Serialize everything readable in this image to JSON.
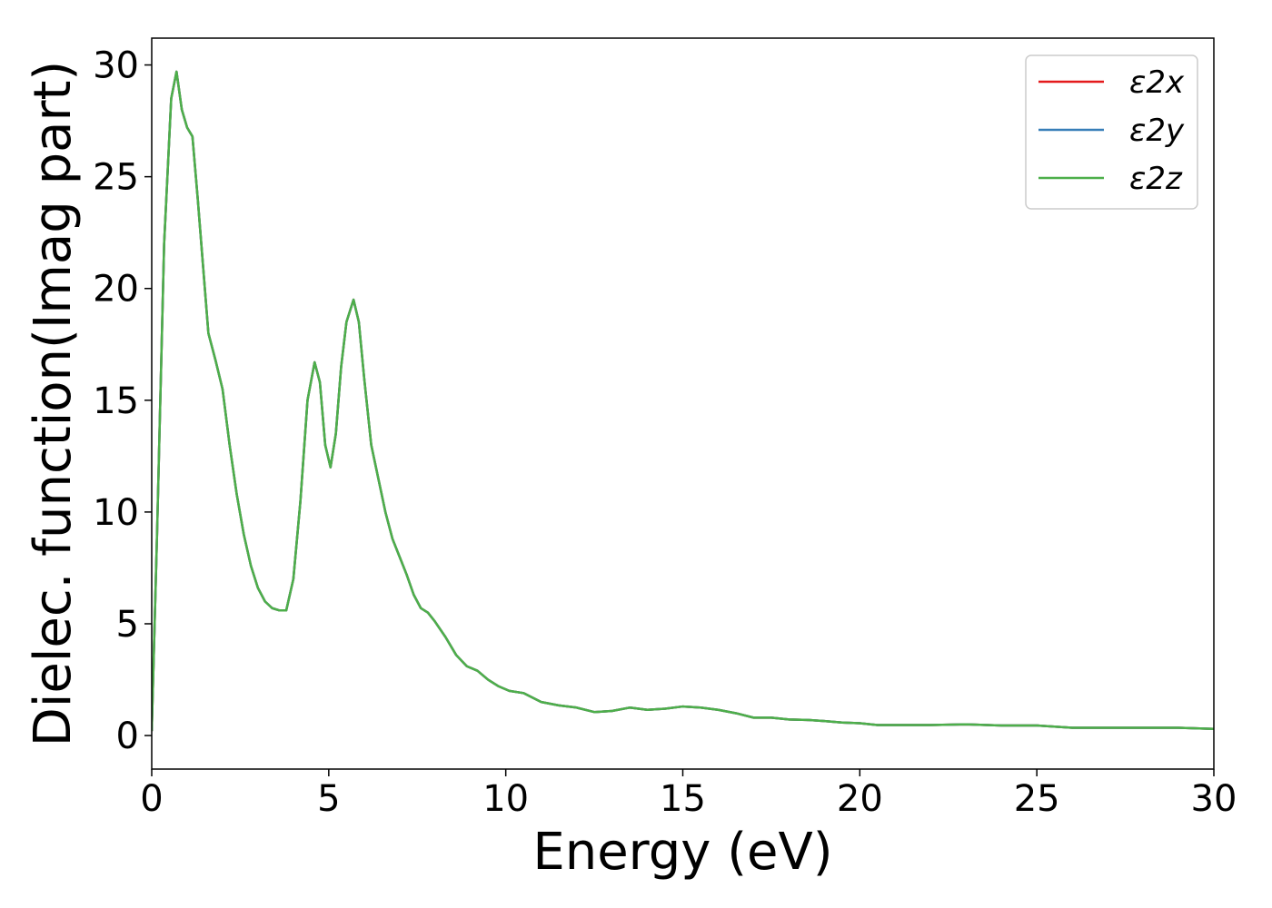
{
  "chart_data": {
    "type": "line",
    "xlabel": "Energy (eV)",
    "ylabel": "Dielec. function(Imag part)",
    "xlim": [
      0,
      30
    ],
    "ylim": [
      -1.5,
      31.2
    ],
    "xticks": [
      0,
      5,
      10,
      15,
      20,
      25,
      30
    ],
    "yticks": [
      0,
      5,
      10,
      15,
      20,
      25,
      30
    ],
    "grid": false,
    "legend_position": "top-right",
    "series": [
      {
        "name": "ε2x",
        "color": "#e41a1c",
        "x": [
          0.0,
          0.15,
          0.35,
          0.55,
          0.7,
          0.85,
          1.0,
          1.15,
          1.3,
          1.45,
          1.6,
          1.8,
          2.0,
          2.2,
          2.4,
          2.6,
          2.8,
          3.0,
          3.2,
          3.4,
          3.6,
          3.8,
          4.0,
          4.2,
          4.4,
          4.6,
          4.75,
          4.9,
          5.05,
          5.2,
          5.35,
          5.5,
          5.7,
          5.85,
          6.0,
          6.2,
          6.4,
          6.6,
          6.8,
          7.0,
          7.2,
          7.4,
          7.6,
          7.8,
          8.0,
          8.3,
          8.6,
          8.9,
          9.2,
          9.5,
          9.8,
          10.1,
          10.5,
          11.0,
          11.5,
          12.0,
          12.5,
          13.0,
          13.5,
          14.0,
          14.5,
          15.0,
          15.5,
          16.0,
          16.5,
          17.0,
          17.5,
          18.0,
          18.5,
          19.0,
          19.5,
          20.0,
          20.5,
          21.0,
          22.0,
          23.0,
          24.0,
          25.0,
          26.0,
          27.0,
          28.0,
          29.0,
          30.0
        ],
        "y": [
          0.2,
          9.0,
          22.0,
          28.5,
          29.7,
          28.0,
          27.2,
          26.8,
          24.0,
          21.0,
          18.0,
          16.8,
          15.5,
          13.0,
          10.8,
          9.0,
          7.6,
          6.6,
          6.0,
          5.7,
          5.6,
          5.6,
          7.0,
          10.5,
          15.0,
          16.7,
          15.8,
          13.0,
          12.0,
          13.5,
          16.5,
          18.5,
          19.5,
          18.5,
          16.0,
          13.0,
          11.5,
          10.0,
          8.8,
          8.0,
          7.2,
          6.3,
          5.7,
          5.5,
          5.1,
          4.4,
          3.6,
          3.1,
          2.9,
          2.5,
          2.2,
          2.0,
          1.9,
          1.5,
          1.35,
          1.25,
          1.05,
          1.1,
          1.25,
          1.15,
          1.2,
          1.3,
          1.25,
          1.15,
          1.0,
          0.8,
          0.8,
          0.72,
          0.7,
          0.65,
          0.58,
          0.55,
          0.47,
          0.47,
          0.47,
          0.5,
          0.45,
          0.45,
          0.35,
          0.35,
          0.35,
          0.35,
          0.3
        ]
      },
      {
        "name": "ε2y",
        "color": "#377eb8",
        "x": [
          0.0,
          0.15,
          0.35,
          0.55,
          0.7,
          0.85,
          1.0,
          1.15,
          1.3,
          1.45,
          1.6,
          1.8,
          2.0,
          2.2,
          2.4,
          2.6,
          2.8,
          3.0,
          3.2,
          3.4,
          3.6,
          3.8,
          4.0,
          4.2,
          4.4,
          4.6,
          4.75,
          4.9,
          5.05,
          5.2,
          5.35,
          5.5,
          5.7,
          5.85,
          6.0,
          6.2,
          6.4,
          6.6,
          6.8,
          7.0,
          7.2,
          7.4,
          7.6,
          7.8,
          8.0,
          8.3,
          8.6,
          8.9,
          9.2,
          9.5,
          9.8,
          10.1,
          10.5,
          11.0,
          11.5,
          12.0,
          12.5,
          13.0,
          13.5,
          14.0,
          14.5,
          15.0,
          15.5,
          16.0,
          16.5,
          17.0,
          17.5,
          18.0,
          18.5,
          19.0,
          19.5,
          20.0,
          20.5,
          21.0,
          22.0,
          23.0,
          24.0,
          25.0,
          26.0,
          27.0,
          28.0,
          29.0,
          30.0
        ],
        "y": [
          0.2,
          9.0,
          22.0,
          28.5,
          29.7,
          28.0,
          27.2,
          26.8,
          24.0,
          21.0,
          18.0,
          16.8,
          15.5,
          13.0,
          10.8,
          9.0,
          7.6,
          6.6,
          6.0,
          5.7,
          5.6,
          5.6,
          7.0,
          10.5,
          15.0,
          16.7,
          15.8,
          13.0,
          12.0,
          13.5,
          16.5,
          18.5,
          19.5,
          18.5,
          16.0,
          13.0,
          11.5,
          10.0,
          8.8,
          8.0,
          7.2,
          6.3,
          5.7,
          5.5,
          5.1,
          4.4,
          3.6,
          3.1,
          2.9,
          2.5,
          2.2,
          2.0,
          1.9,
          1.5,
          1.35,
          1.25,
          1.05,
          1.1,
          1.25,
          1.15,
          1.2,
          1.3,
          1.25,
          1.15,
          1.0,
          0.8,
          0.8,
          0.72,
          0.7,
          0.65,
          0.58,
          0.55,
          0.47,
          0.47,
          0.47,
          0.5,
          0.45,
          0.45,
          0.35,
          0.35,
          0.35,
          0.35,
          0.3
        ]
      },
      {
        "name": "ε2z",
        "color": "#4daf4a",
        "x": [
          0.0,
          0.15,
          0.35,
          0.55,
          0.7,
          0.85,
          1.0,
          1.15,
          1.3,
          1.45,
          1.6,
          1.8,
          2.0,
          2.2,
          2.4,
          2.6,
          2.8,
          3.0,
          3.2,
          3.4,
          3.6,
          3.8,
          4.0,
          4.2,
          4.4,
          4.6,
          4.75,
          4.9,
          5.05,
          5.2,
          5.35,
          5.5,
          5.7,
          5.85,
          6.0,
          6.2,
          6.4,
          6.6,
          6.8,
          7.0,
          7.2,
          7.4,
          7.6,
          7.8,
          8.0,
          8.3,
          8.6,
          8.9,
          9.2,
          9.5,
          9.8,
          10.1,
          10.5,
          11.0,
          11.5,
          12.0,
          12.5,
          13.0,
          13.5,
          14.0,
          14.5,
          15.0,
          15.5,
          16.0,
          16.5,
          17.0,
          17.5,
          18.0,
          18.5,
          19.0,
          19.5,
          20.0,
          20.5,
          21.0,
          22.0,
          23.0,
          24.0,
          25.0,
          26.0,
          27.0,
          28.0,
          29.0,
          30.0
        ],
        "y": [
          0.2,
          9.0,
          22.0,
          28.5,
          29.7,
          28.0,
          27.2,
          26.8,
          24.0,
          21.0,
          18.0,
          16.8,
          15.5,
          13.0,
          10.8,
          9.0,
          7.6,
          6.6,
          6.0,
          5.7,
          5.6,
          5.6,
          7.0,
          10.5,
          15.0,
          16.7,
          15.8,
          13.0,
          12.0,
          13.5,
          16.5,
          18.5,
          19.5,
          18.5,
          16.0,
          13.0,
          11.5,
          10.0,
          8.8,
          8.0,
          7.2,
          6.3,
          5.7,
          5.5,
          5.1,
          4.4,
          3.6,
          3.1,
          2.9,
          2.5,
          2.2,
          2.0,
          1.9,
          1.5,
          1.35,
          1.25,
          1.05,
          1.1,
          1.25,
          1.15,
          1.2,
          1.3,
          1.25,
          1.15,
          1.0,
          0.8,
          0.8,
          0.72,
          0.7,
          0.65,
          0.58,
          0.55,
          0.47,
          0.47,
          0.47,
          0.5,
          0.45,
          0.45,
          0.35,
          0.35,
          0.35,
          0.35,
          0.3
        ]
      }
    ]
  }
}
